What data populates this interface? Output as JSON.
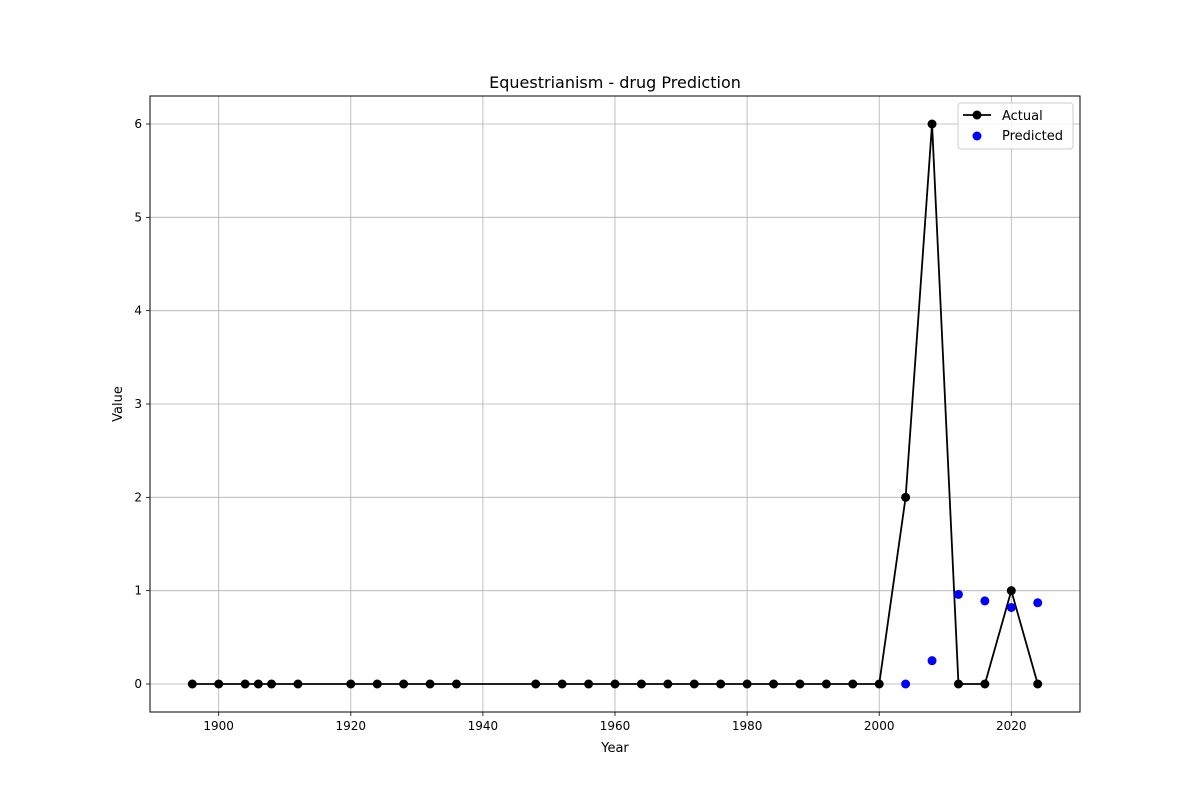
{
  "chart_data": {
    "type": "line",
    "title": "Equestrianism - drug Prediction",
    "xlabel": "Year",
    "ylabel": "Value",
    "xlim": [
      1889.6,
      2030.4
    ],
    "ylim": [
      -0.3,
      6.3
    ],
    "xticks": [
      1900,
      1920,
      1940,
      1960,
      1980,
      2000,
      2020
    ],
    "yticks": [
      0,
      1,
      2,
      3,
      4,
      5,
      6
    ],
    "grid": true,
    "legend_position": "top-right",
    "series": [
      {
        "name": "Actual",
        "style": "line-marker",
        "color": "#000000",
        "x": [
          1896,
          1900,
          1904,
          1906,
          1908,
          1912,
          1920,
          1924,
          1928,
          1932,
          1936,
          1948,
          1952,
          1956,
          1960,
          1964,
          1968,
          1972,
          1976,
          1980,
          1984,
          1988,
          1992,
          1996,
          2000,
          2004,
          2008,
          2012,
          2016,
          2020,
          2024
        ],
        "y": [
          0,
          0,
          0,
          0,
          0,
          0,
          0,
          0,
          0,
          0,
          0,
          0,
          0,
          0,
          0,
          0,
          0,
          0,
          0,
          0,
          0,
          0,
          0,
          0,
          0,
          2,
          6,
          0,
          0,
          1,
          0
        ]
      },
      {
        "name": "Predicted",
        "style": "scatter",
        "color": "#0000ff",
        "x": [
          2004,
          2008,
          2012,
          2016,
          2020,
          2024
        ],
        "y": [
          0.0,
          0.25,
          0.96,
          0.89,
          0.82,
          0.87
        ]
      }
    ]
  }
}
